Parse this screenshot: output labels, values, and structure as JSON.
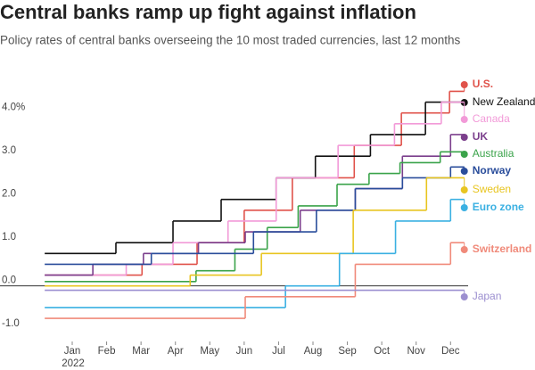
{
  "chart_data": {
    "type": "step",
    "title": "Central banks ramp up fight against inflation",
    "subtitle": "Policy rates of central banks overseeing the 10 most traded currencies, last 12 months",
    "xlim": [
      -1.1,
      12.9
    ],
    "xticks": [
      {
        "value": 1,
        "label": "Jan"
      },
      {
        "value": 2,
        "label": "Feb"
      },
      {
        "value": 3,
        "label": "Mar"
      },
      {
        "value": 4,
        "label": "Apr"
      },
      {
        "value": 5,
        "label": "May"
      },
      {
        "value": 6,
        "label": "Jun"
      },
      {
        "value": 7,
        "label": "Jul"
      },
      {
        "value": 8,
        "label": "Aug"
      },
      {
        "value": 9,
        "label": "Sep"
      },
      {
        "value": 10,
        "label": "Oct"
      },
      {
        "value": 11,
        "label": "Nov"
      },
      {
        "value": 12,
        "label": "Dec"
      }
    ],
    "x_year_label": "2022",
    "ylim": [
      -1.45,
      4.55
    ],
    "yticks": [
      {
        "value": 4,
        "label": "4.0%"
      },
      {
        "value": 3,
        "label": "3.0"
      },
      {
        "value": 2,
        "label": "2.0"
      },
      {
        "value": 1,
        "label": "1.0"
      },
      {
        "value": 0,
        "label": "0.0"
      },
      {
        "value": -1,
        "label": "-1.0"
      }
    ],
    "series": [
      {
        "name": "U.S.",
        "color": "#e0524a",
        "x": [
          0.2,
          3.03,
          4.63,
          6.0,
          7.4,
          9.2,
          10.57,
          11.97,
          12.4
        ],
        "values": [
          0.25,
          0.5,
          1.0,
          1.75,
          2.5,
          3.25,
          4.0,
          4.5,
          4.5
        ]
      },
      {
        "name": "New Zealand",
        "color": "#111111",
        "x": [
          0.2,
          2.27,
          3.93,
          5.33,
          6.93,
          8.07,
          9.67,
          11.27,
          12.4
        ],
        "values": [
          0.75,
          1.0,
          1.5,
          2.0,
          2.5,
          3.0,
          3.5,
          4.25,
          4.25
        ]
      },
      {
        "name": "Canada",
        "color": "#f29ad8",
        "x": [
          0.2,
          2.57,
          3.93,
          5.53,
          6.93,
          8.73,
          10.37,
          11.73,
          12.4
        ],
        "values": [
          0.25,
          0.5,
          1.0,
          1.5,
          2.5,
          3.25,
          3.75,
          4.25,
          4.25
        ]
      },
      {
        "name": "UK",
        "color": "#7b3f8c",
        "x": [
          0.2,
          1.6,
          3.07,
          4.67,
          6.03,
          7.63,
          9.23,
          10.6,
          12.0,
          12.4
        ],
        "values": [
          0.25,
          0.5,
          0.75,
          1.0,
          1.25,
          1.75,
          2.25,
          3.0,
          3.5,
          3.5
        ]
      },
      {
        "name": "Australia",
        "color": "#3aa34a",
        "x": [
          0.2,
          4.6,
          5.73,
          6.67,
          7.57,
          8.7,
          9.63,
          10.53,
          11.7,
          12.4
        ],
        "values": [
          0.1,
          0.35,
          0.85,
          1.35,
          1.85,
          2.35,
          2.6,
          2.85,
          3.1,
          3.1
        ]
      },
      {
        "name": "Norway",
        "color": "#2a4d9b",
        "x": [
          0.2,
          3.3,
          6.27,
          8.1,
          9.23,
          10.6,
          12.0,
          12.4
        ],
        "values": [
          0.5,
          0.75,
          1.25,
          1.75,
          2.25,
          2.5,
          2.75,
          2.75
        ]
      },
      {
        "name": "Sweden",
        "color": "#e8c520",
        "x": [
          0.2,
          4.43,
          6.5,
          9.17,
          11.3,
          12.4
        ],
        "values": [
          0,
          0.25,
          0.75,
          1.75,
          2.5,
          2.5
        ]
      },
      {
        "name": "Euro zone",
        "color": "#3ab0e2",
        "x": [
          0.2,
          7.2,
          8.77,
          10.4,
          12.0,
          12.4
        ],
        "values": [
          -0.5,
          0,
          0.75,
          1.5,
          2.0,
          2.0
        ]
      },
      {
        "name": "Switzerland",
        "color": "#f08a7a",
        "x": [
          0.2,
          6.03,
          9.23,
          12.0,
          12.4
        ],
        "values": [
          -0.75,
          -0.25,
          0.5,
          1.0,
          1.0
        ]
      },
      {
        "name": "Japan",
        "color": "#9c8fd0",
        "x": [
          0.2,
          12.4
        ],
        "values": [
          -0.1,
          -0.1
        ]
      }
    ]
  }
}
